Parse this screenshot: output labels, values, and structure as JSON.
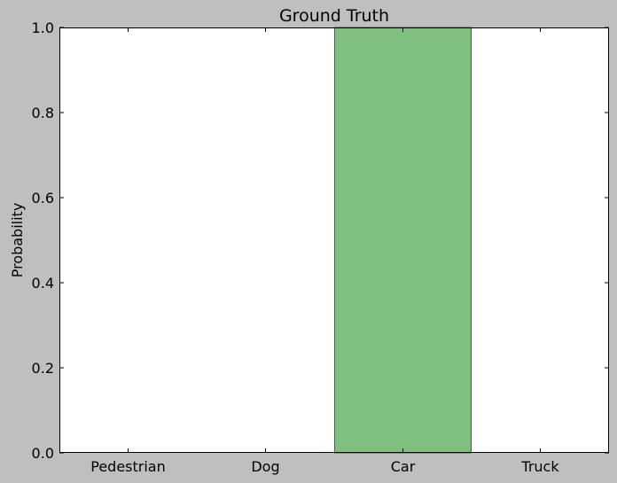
{
  "chart_data": {
    "type": "bar",
    "title": "Ground Truth",
    "xlabel": "",
    "ylabel": "Probability",
    "categories": [
      "Pedestrian",
      "Dog",
      "Car",
      "Truck"
    ],
    "values": [
      0.0,
      0.0,
      1.0,
      0.0
    ],
    "ylim": [
      0,
      1.0
    ],
    "yticks": [
      "0.0",
      "0.2",
      "0.4",
      "0.6",
      "0.8",
      "1.0"
    ],
    "grid": false,
    "bar_color": "#7fbf7f",
    "bar_edge_color": "#3f5f3f"
  }
}
